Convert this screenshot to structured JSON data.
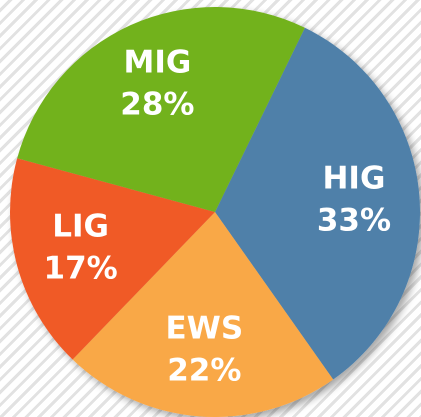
{
  "chart_data": {
    "type": "pie",
    "categories": [
      "HIG",
      "EWS",
      "LIG",
      "MIG"
    ],
    "values": [
      33,
      22,
      17,
      28
    ],
    "value_labels": [
      "33%",
      "22%",
      "17%",
      "28%"
    ],
    "colors": [
      "#4f80a9",
      "#f9a847",
      "#f05a28",
      "#72b21d"
    ]
  }
}
